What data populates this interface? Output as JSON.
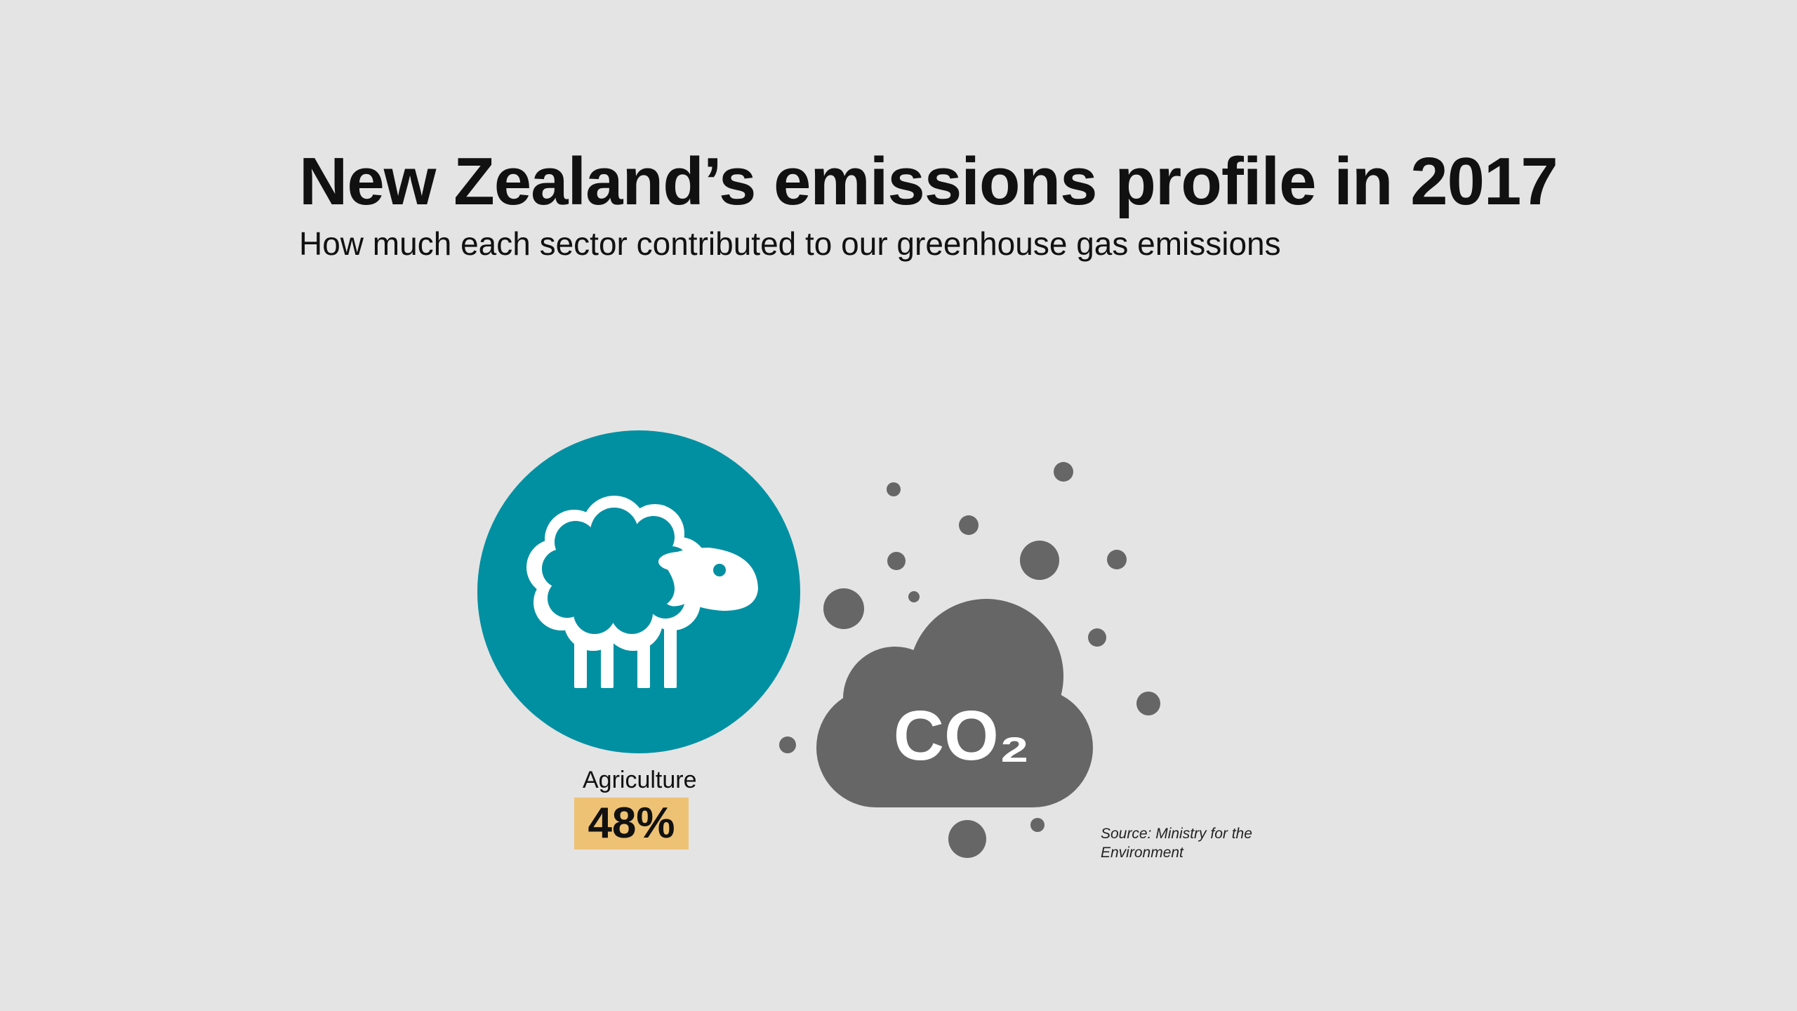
{
  "header": {
    "title": "New Zealand’s emissions profile in 2017",
    "subtitle": "How much each sector contributed to our greenhouse gas emissions"
  },
  "sector": {
    "label": "Agriculture",
    "value": "48%",
    "share": 48,
    "icon": "sheep-icon",
    "circle_color": "#0090a2",
    "value_bg_color": "#eec274"
  },
  "emissions_graphic": {
    "icon": "co2-cloud-icon",
    "cloud_text": "CO₂",
    "color": "#666666"
  },
  "source": {
    "text": "Source: Ministry for the Environment"
  }
}
